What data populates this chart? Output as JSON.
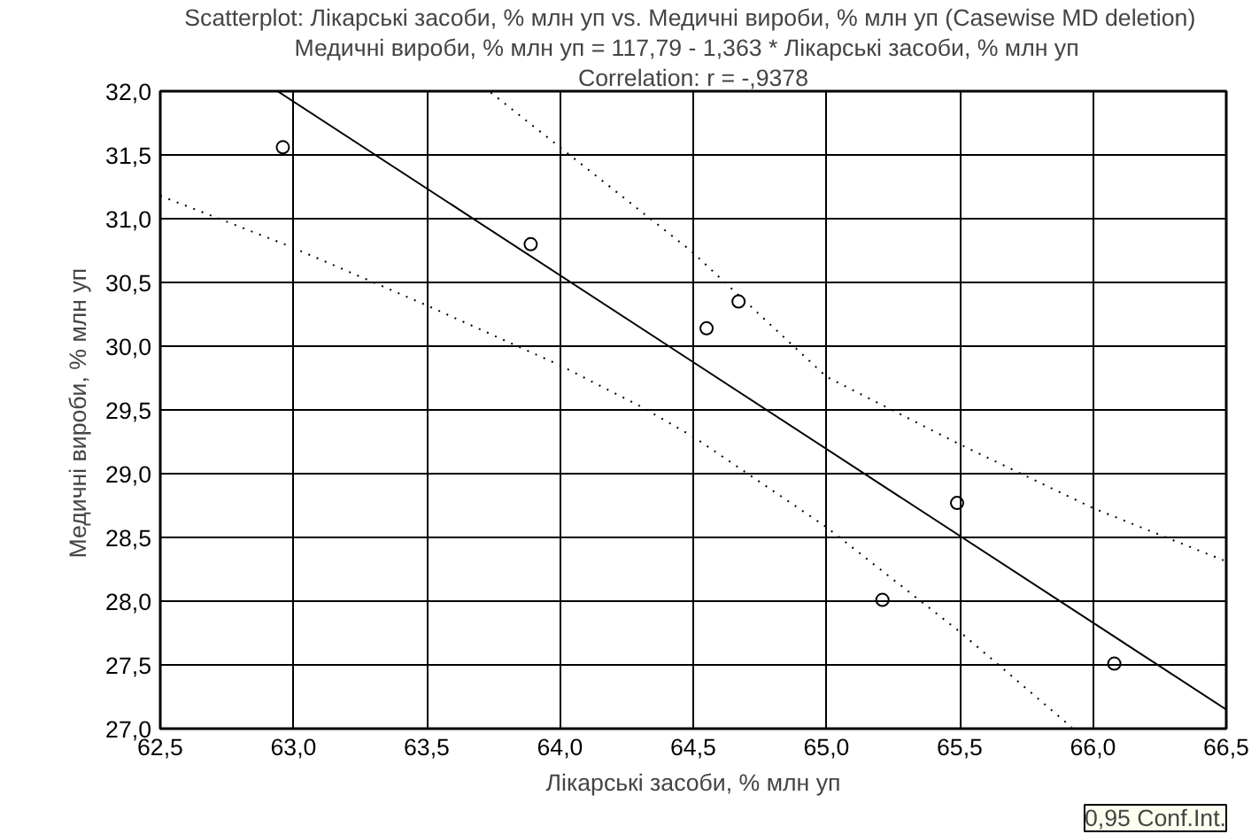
{
  "chart_data": {
    "type": "scatter",
    "title": "Scatterplot: Лікарські засоби, % млн уп vs. Медичні  вироби, % млн уп (Casewise MD deletion)",
    "subtitle": "Медичні  вироби, % млн уп = 117,79 - 1,363  * Лікарські засоби, % млн уп",
    "annotations": [
      "Correlation: r = -,9378",
      "0,95 Conf.Int."
    ],
    "xlabel": "Лікарські засоби, % млн уп",
    "ylabel": "Медичні  вироби, % млн уп",
    "xlim": [
      62.5,
      66.5
    ],
    "ylim": [
      27.0,
      32.0
    ],
    "xticks": [
      {
        "value": 62.5,
        "label": "62,5"
      },
      {
        "value": 63.0,
        "label": "63,0"
      },
      {
        "value": 63.5,
        "label": "63,5"
      },
      {
        "value": 64.0,
        "label": "64,0"
      },
      {
        "value": 64.5,
        "label": "64,5"
      },
      {
        "value": 65.0,
        "label": "65,0"
      },
      {
        "value": 65.5,
        "label": "65,5"
      },
      {
        "value": 66.0,
        "label": "66,0"
      },
      {
        "value": 66.5,
        "label": "66,5"
      }
    ],
    "yticks": [
      {
        "value": 27.0,
        "label": "27,0"
      },
      {
        "value": 27.5,
        "label": "27,5"
      },
      {
        "value": 28.0,
        "label": "28,0"
      },
      {
        "value": 28.5,
        "label": "28,5"
      },
      {
        "value": 29.0,
        "label": "29,0"
      },
      {
        "value": 29.5,
        "label": "29,5"
      },
      {
        "value": 30.0,
        "label": "30,0"
      },
      {
        "value": 30.5,
        "label": "30,5"
      },
      {
        "value": 31.0,
        "label": "31,0"
      },
      {
        "value": 31.5,
        "label": "31,5"
      },
      {
        "value": 32.0,
        "label": "32,0"
      }
    ],
    "grid": true,
    "series": [
      {
        "marker": "circle",
        "color": "#000000",
        "x": [
          62.96,
          63.89,
          64.55,
          64.67,
          65.21,
          65.49,
          66.08
        ],
        "values": [
          31.56,
          30.8,
          30.14,
          30.35,
          28.01,
          28.77,
          27.51
        ]
      },
      {
        "type": "line",
        "line_style": "solid",
        "marker": "none",
        "color": "#000000",
        "x": [
          62.94,
          66.5
        ],
        "values": [
          32.0,
          27.15
        ]
      },
      {
        "type": "line",
        "line_style": "dotted",
        "marker": "none",
        "color": "#000000",
        "x": [
          63.74,
          64.49,
          65.0,
          65.5,
          66.0,
          66.49
        ],
        "values": [
          31.99,
          30.75,
          29.76,
          29.23,
          28.73,
          28.32
        ]
      },
      {
        "type": "line",
        "line_style": "dotted",
        "marker": "none",
        "color": "#000000",
        "x": [
          62.5,
          62.99,
          63.5,
          64.0,
          64.3,
          64.5,
          65.0,
          65.5,
          65.92
        ],
        "values": [
          31.18,
          30.78,
          30.32,
          29.85,
          29.53,
          29.29,
          28.58,
          27.76,
          27.01
        ]
      }
    ]
  }
}
